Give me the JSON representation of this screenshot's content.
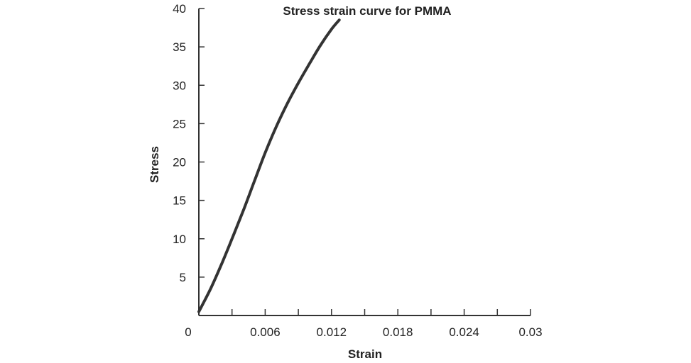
{
  "chart_data": {
    "type": "line",
    "title": "Stress strain curve for PMMA",
    "xlabel": "Strain",
    "ylabel": "Stress",
    "xlim": [
      0,
      0.03
    ],
    "ylim": [
      0,
      40
    ],
    "x_tick_labels": [
      "0",
      "0.006",
      "0.012",
      "0.018",
      "0.024",
      "0.03"
    ],
    "x_tick_values": [
      0,
      0.006,
      0.012,
      0.018,
      0.024,
      0.03
    ],
    "x_minor_ticks": [
      0.003,
      0.009,
      0.015,
      0.021,
      0.027
    ],
    "y_tick_labels": [
      "5",
      "10",
      "15",
      "20",
      "25",
      "30",
      "35",
      "40"
    ],
    "y_tick_values": [
      5,
      10,
      15,
      20,
      25,
      30,
      35,
      40
    ],
    "grid": false,
    "series": [
      {
        "color": "#333333",
        "x": [
          0,
          0.001,
          0.002,
          0.003,
          0.004,
          0.005,
          0.006,
          0.007,
          0.008,
          0.009,
          0.01,
          0.011,
          0.012,
          0.0127
        ],
        "y": [
          0.5,
          3.3,
          6.5,
          10.0,
          13.6,
          17.4,
          21.2,
          24.6,
          27.6,
          30.3,
          32.8,
          35.2,
          37.3,
          38.5
        ]
      }
    ]
  }
}
